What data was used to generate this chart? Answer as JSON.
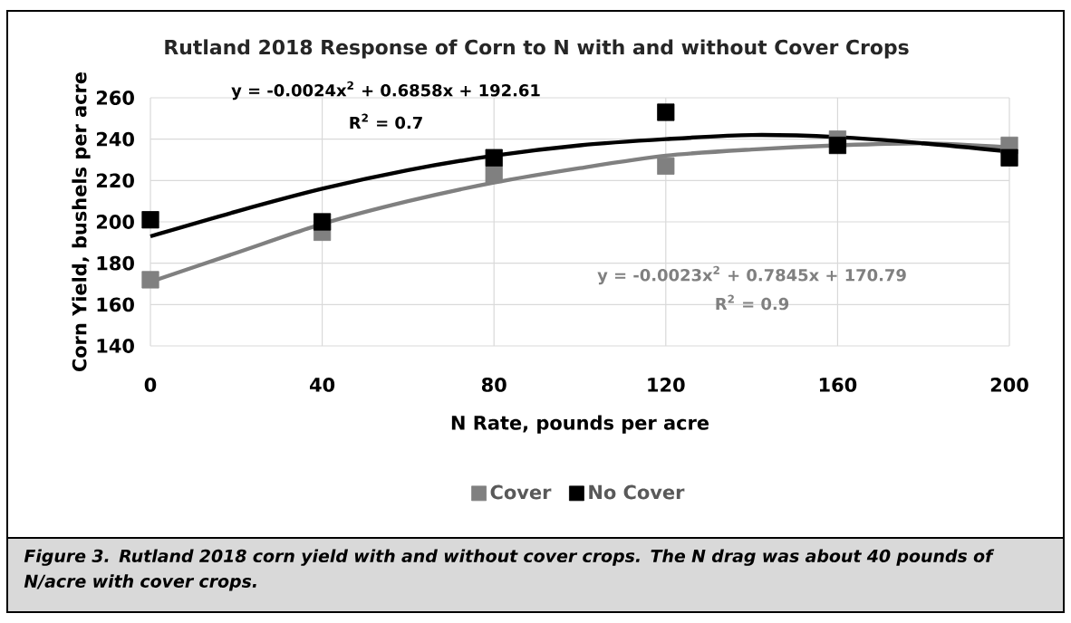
{
  "chart_data": {
    "type": "scatter",
    "title": "Rutland 2018 Response of Corn to N with and without Cover Crops",
    "xlabel": "N Rate, pounds per acre",
    "ylabel": "Corn Yield, bushels per acre",
    "x": [
      0,
      40,
      80,
      120,
      160,
      200
    ],
    "series": [
      {
        "name": "Cover",
        "color": "#808080",
        "values": [
          172,
          195,
          223,
          227,
          240,
          237
        ]
      },
      {
        "name": "No Cover",
        "color": "#000000",
        "values": [
          201,
          200,
          231,
          253,
          237,
          231
        ]
      },
      {
        "type": "line",
        "marker": "none",
        "color": "#808080",
        "x": [
          0,
          20,
          40,
          60,
          80,
          100,
          120,
          140,
          160,
          180,
          200
        ],
        "values": [
          171,
          185,
          199,
          210,
          219,
          226,
          232,
          235,
          237,
          238,
          236
        ]
      },
      {
        "type": "line",
        "marker": "none",
        "color": "#000000",
        "x": [
          0,
          20,
          40,
          60,
          80,
          100,
          120,
          140,
          160,
          180,
          200
        ],
        "values": [
          193,
          205,
          216,
          225,
          232,
          237,
          240,
          242,
          241,
          238,
          234
        ]
      }
    ],
    "xlim": [
      0,
      200
    ],
    "ylim": [
      140,
      260
    ],
    "xticks": [
      0,
      40,
      80,
      120,
      160,
      200
    ],
    "yticks": [
      140,
      160,
      180,
      200,
      220,
      240,
      260
    ],
    "grid": true,
    "legend": "bottom",
    "marker": "square",
    "annotations": [
      "y = -0.0024x$^{2}$ + 0.6858x + 192.61",
      "R$^{2}$ = 0.7",
      "y = -0.0023x$^{2}$ + 0.7845x + 170.79",
      "R$^{2}$ = 0.9",
      "Figure 3. Rutland 2018 corn yield with and without cover crops. The N drag was about 40 pounds of N/acre with cover crops."
    ]
  }
}
